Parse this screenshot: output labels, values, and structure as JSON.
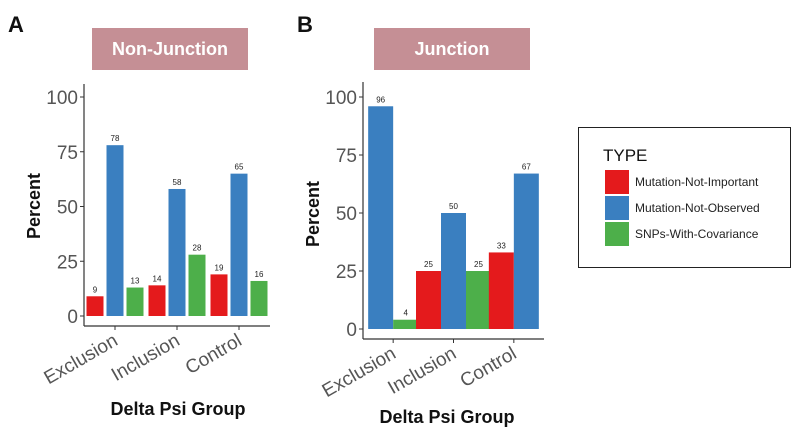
{
  "panels": [
    {
      "letter": "A",
      "facet": "Non-Junction",
      "ylabel": "Percent",
      "xlabel": "Delta Psi Group"
    },
    {
      "letter": "B",
      "facet": "Junction",
      "ylabel": "Percent",
      "xlabel": "Delta Psi Group"
    }
  ],
  "legend": {
    "title": "TYPE",
    "items": [
      {
        "label": "Mutation-Not-Important",
        "color": "#e41a1c"
      },
      {
        "label": "Mutation-Not-Observed",
        "color": "#3a7fc0"
      },
      {
        "label": "SNPs-With-Covariance",
        "color": "#4daf4a"
      }
    ]
  },
  "colors": {
    "facet_bg": "#c58f95",
    "facet_text": "#ffffff"
  },
  "chart_data": [
    {
      "type": "bar",
      "title": "Non-Junction",
      "xlabel": "Delta Psi Group",
      "ylabel": "Percent",
      "ylim": [
        0,
        100
      ],
      "yticks": [
        "0",
        "25",
        "50",
        "75",
        "100"
      ],
      "categories": [
        "Exclusion",
        "Inclusion",
        "Control"
      ],
      "series": [
        {
          "name": "Mutation-Not-Important",
          "values": [
            9,
            14,
            19
          ]
        },
        {
          "name": "Mutation-Not-Observed",
          "values": [
            78,
            58,
            65
          ]
        },
        {
          "name": "SNPs-With-Covariance",
          "values": [
            13,
            28,
            16
          ]
        }
      ],
      "grid": false,
      "legend": "right"
    },
    {
      "type": "bar",
      "title": "Junction",
      "xlabel": "Delta Psi Group",
      "ylabel": "Percent",
      "ylim": [
        0,
        100
      ],
      "yticks": [
        "0",
        "25",
        "50",
        "75",
        "100"
      ],
      "categories": [
        "Exclusion",
        "Inclusion",
        "Control"
      ],
      "series": [
        {
          "name": "Mutation-Not-Important",
          "values": [
            null,
            25,
            33
          ]
        },
        {
          "name": "Mutation-Not-Observed",
          "values": [
            96,
            50,
            67
          ]
        },
        {
          "name": "SNPs-With-Covariance",
          "values": [
            4,
            25,
            null
          ]
        }
      ],
      "grid": false,
      "legend": "right"
    }
  ]
}
